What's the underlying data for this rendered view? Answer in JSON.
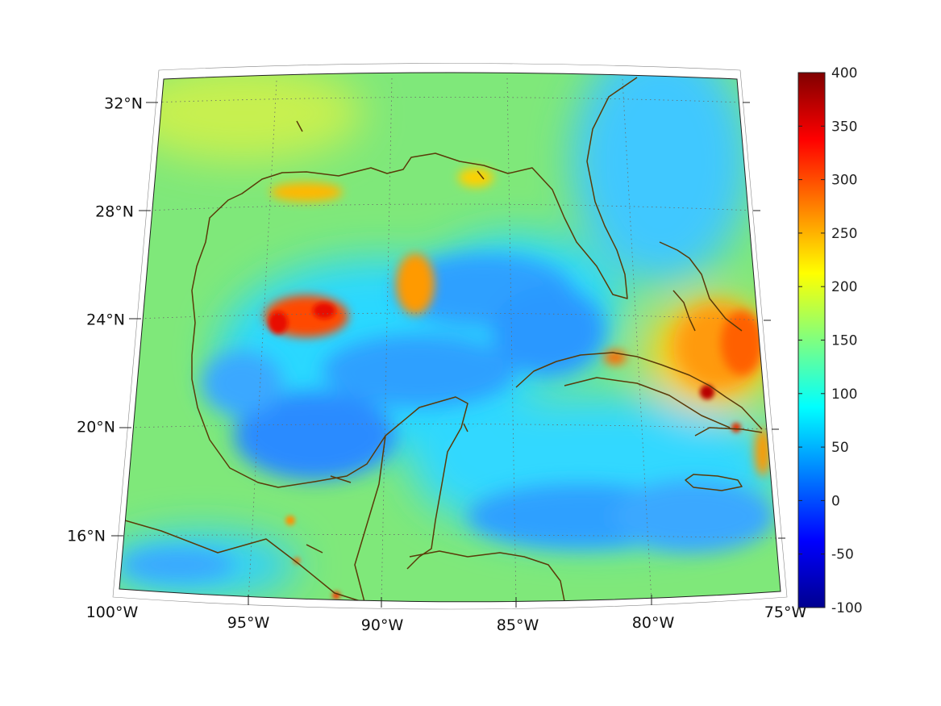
{
  "map": {
    "longitude_labels": [
      "100°W",
      "95°W",
      "90°W",
      "85°W",
      "80°W",
      "75°W"
    ],
    "latitude_labels": [
      "32°N",
      "28°N",
      "24°N",
      "20°N",
      "16°N"
    ],
    "land_outline_color": "#5a3a08",
    "grid_style": "dotted",
    "color_scale": "jet"
  },
  "colorbar": {
    "min": -100,
    "max": 400,
    "tick_labels": [
      "400",
      "350",
      "300",
      "250",
      "200",
      "150",
      "100",
      "50",
      "0",
      "-50",
      "-100"
    ]
  }
}
